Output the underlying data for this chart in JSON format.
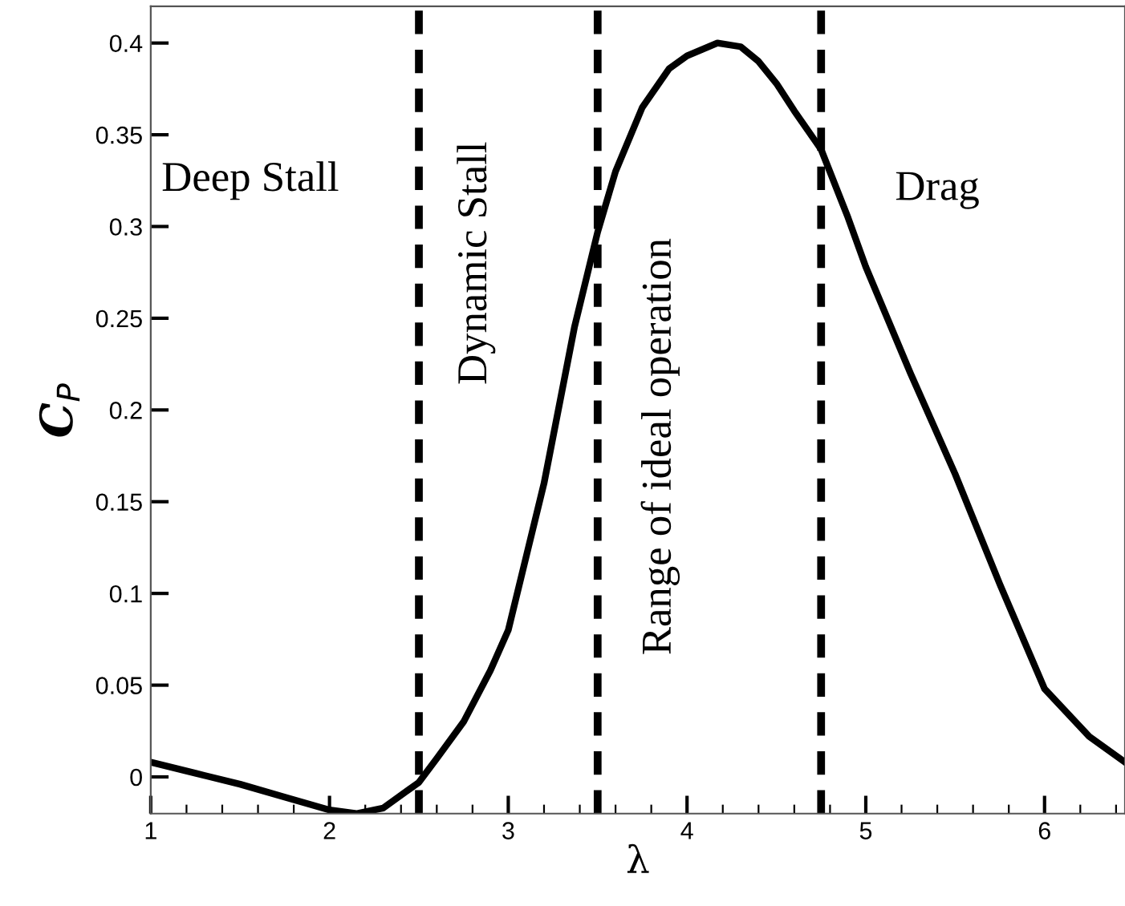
{
  "chart_data": {
    "type": "line",
    "xlabel": "λ",
    "ylabel": "C$_{P}$",
    "x": [
      1,
      1.25,
      1.5,
      1.75,
      2,
      2.15,
      2.3,
      2.5,
      2.6,
      2.75,
      2.9,
      3,
      3.1,
      3.2,
      3.37,
      3.5,
      3.6,
      3.75,
      3.9,
      4,
      4.17,
      4.3,
      4.4,
      4.5,
      4.6,
      4.75,
      4.9,
      5,
      5.25,
      5.5,
      5.75,
      6,
      6.25,
      6.45
    ],
    "series": [
      {
        "color": "#000000",
        "values": [
          0.008,
          0.002,
          -0.004,
          -0.011,
          -0.018,
          -0.02,
          -0.017,
          -0.003,
          0.01,
          0.03,
          0.058,
          0.08,
          0.12,
          0.16,
          0.245,
          0.297,
          0.33,
          0.365,
          0.386,
          0.393,
          0.4,
          0.398,
          0.39,
          0.378,
          0.363,
          0.342,
          0.305,
          0.278,
          0.22,
          0.165,
          0.105,
          0.048,
          0.022,
          0.008
        ]
      }
    ],
    "xlim": [
      1,
      6.45
    ],
    "ylim": [
      -0.02,
      0.42
    ],
    "xticks": [
      1,
      {
        "value": 1.2,
        "label": null
      },
      {
        "value": 1.4,
        "label": null
      },
      {
        "value": 1.6,
        "label": null
      },
      {
        "value": 1.8,
        "label": null
      },
      2,
      {
        "value": 2.2,
        "label": null
      },
      {
        "value": 2.4,
        "label": null
      },
      {
        "value": 2.6,
        "label": null
      },
      {
        "value": 2.8,
        "label": null
      },
      3,
      {
        "value": 3.2,
        "label": null
      },
      {
        "value": 3.4,
        "label": null
      },
      {
        "value": 3.6,
        "label": null
      },
      {
        "value": 3.8,
        "label": null
      },
      4,
      {
        "value": 4.2,
        "label": null
      },
      {
        "value": 4.4,
        "label": null
      },
      {
        "value": 4.6,
        "label": null
      },
      {
        "value": 4.8,
        "label": null
      },
      5,
      {
        "value": 5.2,
        "label": null
      },
      {
        "value": 5.4,
        "label": null
      },
      {
        "value": 5.6,
        "label": null
      },
      {
        "value": 5.8,
        "label": null
      },
      6,
      {
        "value": 6.2,
        "label": null
      },
      {
        "value": 6.4,
        "label": null
      }
    ],
    "yticks": [
      0,
      0.05,
      0.1,
      0.15,
      0.2,
      0.25,
      0.3,
      0.35,
      0.4
    ],
    "ref_lines": [
      {
        "axis": "x",
        "value": 2.5,
        "color": "#000000",
        "line_style": "dashed"
      },
      {
        "axis": "x",
        "value": 3.5,
        "color": "#000000",
        "line_style": "dashed"
      },
      {
        "axis": "x",
        "value": 4.75,
        "color": "#000000",
        "line_style": "dashed"
      }
    ],
    "annotations": [
      "Deep Stall",
      "Dynamic Stall",
      "Range of ideal operation",
      "Drag"
    ],
    "grid": false,
    "legend": false,
    "marker": "none",
    "line_style": "solid"
  }
}
